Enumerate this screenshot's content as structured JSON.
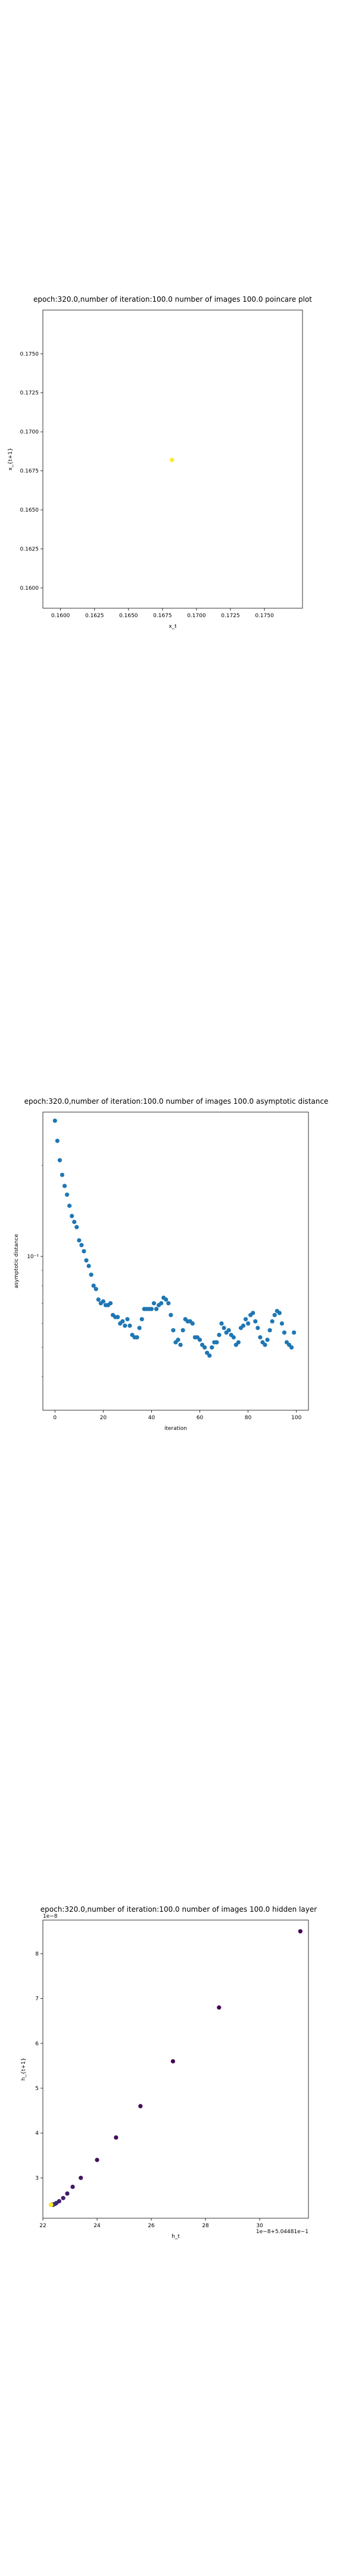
{
  "chart_data": [
    {
      "type": "scatter",
      "title": "epoch:320.0,number of iteration:100.0 number of images 100.0 poincare plot",
      "xlabel": "x_t",
      "ylabel": "x_{t+1}",
      "xlim": [
        0.1587,
        0.1778
      ],
      "ylim": [
        0.1587,
        0.1778
      ],
      "xticks": [
        "0.1600",
        "0.1625",
        "0.1650",
        "0.1675",
        "0.1700",
        "0.1725",
        "0.1750"
      ],
      "xtick_values": [
        0.16,
        0.1625,
        0.165,
        0.1675,
        0.17,
        0.1725,
        0.175
      ],
      "yticks": [
        "0.1600",
        "0.1625",
        "0.1650",
        "0.1675",
        "0.1700",
        "0.1725",
        "0.1750"
      ],
      "ytick_values": [
        0.16,
        0.1625,
        0.165,
        0.1675,
        0.17,
        0.1725,
        0.175
      ],
      "grid": false,
      "point_color": "#fde725",
      "points": [
        [
          0.1682,
          0.1682
        ]
      ]
    },
    {
      "type": "scatter",
      "title": "epoch:320.0,number of iteration:100.0  number of images 100.0 asymptotic distance",
      "xlabel": "iteration",
      "ylabel": "asymptotic distance",
      "yscale": "log",
      "xlim": [
        -5,
        105
      ],
      "ylim": [
        0.031,
        0.3
      ],
      "xticks": [
        "0",
        "20",
        "40",
        "60",
        "80",
        "100"
      ],
      "xtick_values": [
        0,
        20,
        40,
        60,
        80,
        100
      ],
      "yticks": [
        "10^{-1}"
      ],
      "ytick_values": [
        0.1
      ],
      "grid": false,
      "point_color": "#1f77b4",
      "x": [
        0,
        1,
        2,
        3,
        4,
        5,
        6,
        7,
        8,
        9,
        10,
        11,
        12,
        13,
        14,
        15,
        16,
        17,
        18,
        19,
        20,
        21,
        22,
        23,
        24,
        25,
        26,
        27,
        28,
        29,
        30,
        31,
        32,
        33,
        34,
        35,
        36,
        37,
        38,
        39,
        40,
        41,
        42,
        43,
        44,
        45,
        46,
        47,
        48,
        49,
        50,
        51,
        52,
        53,
        54,
        55,
        56,
        57,
        58,
        59,
        60,
        61,
        62,
        63,
        64,
        65,
        66,
        67,
        68,
        69,
        70,
        71,
        72,
        73,
        74,
        75,
        76,
        77,
        78,
        79,
        80,
        81,
        82,
        83,
        84,
        85,
        86,
        87,
        88,
        89,
        90,
        91,
        92,
        93,
        94,
        95,
        96,
        97,
        98,
        99
      ],
      "y": [
        0.281,
        0.241,
        0.208,
        0.186,
        0.171,
        0.16,
        0.147,
        0.136,
        0.13,
        0.125,
        0.113,
        0.109,
        0.104,
        0.097,
        0.093,
        0.087,
        0.08,
        0.078,
        0.072,
        0.07,
        0.071,
        0.069,
        0.069,
        0.07,
        0.064,
        0.063,
        0.063,
        0.06,
        0.061,
        0.059,
        0.062,
        0.059,
        0.055,
        0.054,
        0.054,
        0.058,
        0.062,
        0.067,
        0.067,
        0.067,
        0.067,
        0.07,
        0.067,
        0.069,
        0.07,
        0.073,
        0.072,
        0.07,
        0.064,
        0.057,
        0.052,
        0.053,
        0.051,
        0.057,
        0.062,
        0.061,
        0.061,
        0.06,
        0.054,
        0.054,
        0.053,
        0.051,
        0.05,
        0.048,
        0.047,
        0.05,
        0.052,
        0.052,
        0.055,
        0.06,
        0.058,
        0.056,
        0.057,
        0.055,
        0.054,
        0.051,
        0.052,
        0.058,
        0.059,
        0.062,
        0.06,
        0.064,
        0.065,
        0.061,
        0.058,
        0.054,
        0.052,
        0.051,
        0.053,
        0.057,
        0.061,
        0.064,
        0.066,
        0.065,
        0.06,
        0.056,
        0.052,
        0.051,
        0.05,
        0.056
      ]
    },
    {
      "type": "scatter",
      "title": "epoch:320.0,number of iteration:100.0  number of images 100.0 hidden layer",
      "xlabel": "h_t",
      "ylabel": "h_{t+1}",
      "xlim": [
        22.0,
        31.8
      ],
      "ylim": [
        2.1,
        8.75
      ],
      "xticks": [
        "22",
        "24",
        "26",
        "28",
        "30"
      ],
      "xtick_values": [
        22,
        24,
        26,
        28,
        30
      ],
      "yticks": [
        "3",
        "4",
        "5",
        "6",
        "7",
        "8"
      ],
      "ytick_values": [
        3,
        4,
        5,
        6,
        7,
        8
      ],
      "y_offset_text": "1e−8",
      "x_offset_text": "1e−8+5.04481e−1",
      "grid": false,
      "colormap": "viridis",
      "color_range": [
        0,
        99
      ],
      "x": [
        31.5,
        28.5,
        26.8,
        25.6,
        24.7,
        24.0,
        23.4,
        23.1,
        22.9,
        22.75,
        22.6,
        22.5,
        22.45,
        22.4,
        22.38,
        22.36,
        22.35,
        22.34,
        22.33,
        22.33,
        22.32,
        22.32,
        22.31,
        22.31,
        22.31,
        22.31,
        22.3,
        22.3,
        22.3,
        22.3,
        22.3,
        22.3,
        22.3,
        22.3,
        22.3,
        22.3,
        22.3,
        22.3,
        22.3,
        22.3,
        22.3,
        22.3,
        22.3,
        22.3,
        22.3,
        22.3,
        22.3,
        22.3,
        22.3,
        22.3,
        22.3,
        22.3,
        22.3,
        22.3,
        22.3,
        22.3,
        22.3,
        22.3,
        22.3,
        22.3,
        22.3,
        22.3,
        22.3,
        22.3,
        22.3,
        22.3,
        22.3,
        22.3,
        22.3,
        22.3,
        22.3,
        22.3,
        22.3,
        22.3,
        22.3,
        22.3,
        22.3,
        22.3,
        22.3,
        22.3,
        22.3,
        22.3,
        22.3,
        22.3,
        22.3,
        22.3,
        22.3,
        22.3,
        22.3,
        22.3,
        22.3,
        22.3,
        22.3,
        22.3,
        22.3,
        22.3,
        22.3,
        22.3,
        22.3
      ],
      "y": [
        8.5,
        6.8,
        5.6,
        4.6,
        3.9,
        3.4,
        3.0,
        2.8,
        2.65,
        2.55,
        2.48,
        2.44,
        2.42,
        2.41,
        2.4,
        2.4,
        2.4,
        2.4,
        2.4,
        2.4,
        2.4,
        2.4,
        2.4,
        2.4,
        2.4,
        2.4,
        2.4,
        2.4,
        2.4,
        2.4,
        2.4,
        2.4,
        2.4,
        2.4,
        2.4,
        2.4,
        2.4,
        2.4,
        2.4,
        2.4,
        2.4,
        2.4,
        2.4,
        2.4,
        2.4,
        2.4,
        2.4,
        2.4,
        2.4,
        2.4,
        2.4,
        2.4,
        2.4,
        2.4,
        2.4,
        2.4,
        2.4,
        2.4,
        2.4,
        2.4,
        2.4,
        2.4,
        2.4,
        2.4,
        2.4,
        2.4,
        2.4,
        2.4,
        2.4,
        2.4,
        2.4,
        2.4,
        2.4,
        2.4,
        2.4,
        2.4,
        2.4,
        2.4,
        2.4,
        2.4,
        2.4,
        2.4,
        2.4,
        2.4,
        2.4,
        2.4,
        2.4,
        2.4,
        2.4,
        2.4,
        2.4,
        2.4,
        2.4,
        2.4,
        2.4,
        2.4,
        2.4,
        2.4,
        2.4
      ]
    }
  ]
}
